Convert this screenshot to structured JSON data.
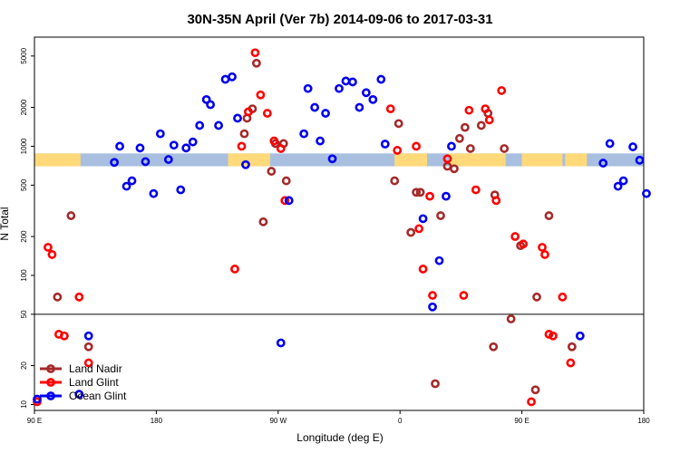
{
  "chart_data": {
    "type": "scatter",
    "title": "30N-35N April (Ver 7b)   2014-09-06 to 2017-03-31",
    "xlabel": "Longitude (deg E)",
    "ylabel": "N Total",
    "x_scale": "linear",
    "y_scale": "log",
    "xlim": [
      90,
      540
    ],
    "ylim": [
      9,
      7000
    ],
    "x_ticks": [
      {
        "value": 90,
        "label": "90 E"
      },
      {
        "value": 180,
        "label": "180"
      },
      {
        "value": 270,
        "label": "90 W"
      },
      {
        "value": 360,
        "label": "0"
      },
      {
        "value": 450,
        "label": "90 E"
      },
      {
        "value": 540,
        "label": "180"
      }
    ],
    "y_ticks": [
      {
        "value": 10,
        "label": "10"
      },
      {
        "value": 20,
        "label": "20"
      },
      {
        "value": 50,
        "label": "50"
      },
      {
        "value": 100,
        "label": "100"
      },
      {
        "value": 200,
        "label": "200"
      },
      {
        "value": 500,
        "label": "500"
      },
      {
        "value": 1000,
        "label": "1000"
      },
      {
        "value": 2000,
        "label": "2000"
      },
      {
        "value": 5000,
        "label": "5000"
      }
    ],
    "reference_line_y": 50,
    "legend_position": "bottom-left",
    "grid": false,
    "series": [
      {
        "name": "Land Nadir",
        "color": "#a52a2a",
        "points": [
          [
            107,
            68
          ],
          [
            117,
            290
          ],
          [
            130,
            28
          ],
          [
            123,
            12
          ],
          [
            245,
            1250
          ],
          [
            247,
            1650
          ],
          [
            251,
            1950
          ],
          [
            254,
            4400
          ],
          [
            259,
            260
          ],
          [
            265,
            640
          ],
          [
            268,
            1050
          ],
          [
            274,
            1050
          ],
          [
            276,
            540
          ],
          [
            356,
            540
          ],
          [
            359,
            1500
          ],
          [
            368,
            215
          ],
          [
            372,
            440
          ],
          [
            375,
            440
          ],
          [
            386,
            14.5
          ],
          [
            390,
            290
          ],
          [
            395,
            700
          ],
          [
            400,
            670
          ],
          [
            404,
            1150
          ],
          [
            408,
            1400
          ],
          [
            412,
            960
          ],
          [
            420,
            1450
          ],
          [
            425,
            1800
          ],
          [
            429,
            28
          ],
          [
            430,
            420
          ],
          [
            437,
            960
          ],
          [
            442,
            46
          ],
          [
            449,
            170
          ],
          [
            460,
            13
          ],
          [
            470,
            290
          ],
          [
            461,
            68
          ],
          [
            487,
            28
          ]
        ]
      },
      {
        "name": "Land Glint",
        "color": "#ff0000",
        "points": [
          [
            92,
            10.5
          ],
          [
            100,
            165
          ],
          [
            103,
            145
          ],
          [
            108,
            35
          ],
          [
            112,
            34
          ],
          [
            123,
            68
          ],
          [
            130,
            21
          ],
          [
            238,
            112
          ],
          [
            243,
            1000
          ],
          [
            248,
            1850
          ],
          [
            253,
            5300
          ],
          [
            257,
            2500
          ],
          [
            262,
            1800
          ],
          [
            267,
            1100
          ],
          [
            272,
            960
          ],
          [
            275,
            380
          ],
          [
            353,
            1950
          ],
          [
            358,
            930
          ],
          [
            372,
            1000
          ],
          [
            374,
            230
          ],
          [
            377,
            112
          ],
          [
            382,
            410
          ],
          [
            384,
            70
          ],
          [
            395,
            800
          ],
          [
            407,
            70
          ],
          [
            411,
            1900
          ],
          [
            416,
            460
          ],
          [
            423,
            1950
          ],
          [
            426,
            1600
          ],
          [
            431,
            380
          ],
          [
            435,
            2700
          ],
          [
            445,
            200
          ],
          [
            451,
            175
          ],
          [
            457,
            10.5
          ],
          [
            465,
            165
          ],
          [
            467,
            145
          ],
          [
            470,
            35
          ],
          [
            473,
            34
          ],
          [
            480,
            68
          ],
          [
            486,
            21
          ]
        ]
      },
      {
        "name": "Ocean Glint",
        "color": "#0000ee",
        "points": [
          [
            149,
            750
          ],
          [
            153,
            1000
          ],
          [
            158,
            490
          ],
          [
            162,
            540
          ],
          [
            168,
            970
          ],
          [
            172,
            760
          ],
          [
            178,
            430
          ],
          [
            183,
            1250
          ],
          [
            189,
            790
          ],
          [
            193,
            1020
          ],
          [
            198,
            460
          ],
          [
            202,
            970
          ],
          [
            207,
            1080
          ],
          [
            212,
            1450
          ],
          [
            217,
            2300
          ],
          [
            220,
            2100
          ],
          [
            226,
            1450
          ],
          [
            231,
            3300
          ],
          [
            236,
            3450
          ],
          [
            240,
            1650
          ],
          [
            246,
            720
          ],
          [
            272,
            30
          ],
          [
            278,
            380
          ],
          [
            289,
            1250
          ],
          [
            292,
            2800
          ],
          [
            297,
            2000
          ],
          [
            301,
            1100
          ],
          [
            305,
            1800
          ],
          [
            310,
            800
          ],
          [
            315,
            2800
          ],
          [
            320,
            3200
          ],
          [
            325,
            3150
          ],
          [
            330,
            2000
          ],
          [
            335,
            2600
          ],
          [
            340,
            2300
          ],
          [
            346,
            3300
          ],
          [
            349,
            1040
          ],
          [
            377,
            275
          ],
          [
            384,
            57
          ],
          [
            389,
            130
          ],
          [
            394,
            410
          ],
          [
            398,
            1000
          ],
          [
            510,
            740
          ],
          [
            515,
            1050
          ],
          [
            521,
            490
          ],
          [
            525,
            540
          ],
          [
            532,
            990
          ],
          [
            537,
            780
          ],
          [
            542,
            430
          ],
          [
            92,
            11
          ],
          [
            123,
            12
          ],
          [
            130,
            34
          ],
          [
            493,
            34
          ]
        ]
      }
    ],
    "background_band": {
      "y_range": [
        700,
        880
      ],
      "ocean_color": "#a9bfe0",
      "land_color": "#ffd97a",
      "land_segments_lon": [
        [
          90,
          124
        ],
        [
          233,
          264
        ],
        [
          356,
          380
        ],
        [
          396,
          438
        ],
        [
          450,
          480
        ],
        [
          482,
          498
        ]
      ]
    }
  }
}
